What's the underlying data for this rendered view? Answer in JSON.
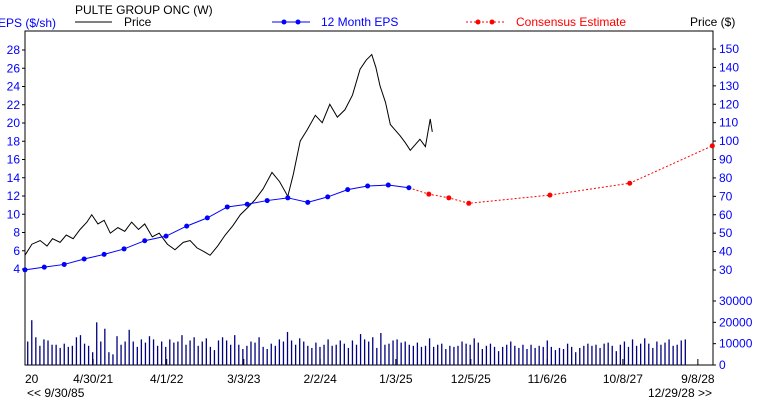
{
  "chart_data": {
    "type": "line",
    "title": "PULTE GROUP ONC (W)",
    "left_axis_label": "EPS ($/sh)",
    "right_axis_label": "Price ($)",
    "legend": {
      "price": "Price",
      "eps": "12 Month EPS",
      "estimate": "Consensus Estimate"
    },
    "colors": {
      "price": "#000000",
      "eps": "#0000ff",
      "estimate": "#ff0000",
      "volume": "#000080",
      "axis_text": "#0000ff"
    },
    "x_unit": "months from start of visible range",
    "xlim": [
      0,
      100
    ],
    "eps_ylim": [
      4,
      28
    ],
    "eps_ticks": [
      4,
      6,
      8,
      10,
      12,
      14,
      16,
      18,
      20,
      22,
      24,
      26,
      28
    ],
    "price_ylim": [
      30,
      150
    ],
    "price_ticks": [
      30,
      40,
      50,
      60,
      70,
      80,
      90,
      100,
      110,
      120,
      130,
      140,
      150
    ],
    "volume_ylim": [
      0,
      30000
    ],
    "volume_ticks": [
      0,
      10000,
      20000,
      30000
    ],
    "x_ticks": [
      {
        "label": "20",
        "x": 0
      },
      {
        "label": "4/30/21",
        "x": 9.9
      },
      {
        "label": "4/1/22",
        "x": 20.6
      },
      {
        "label": "3/3/23",
        "x": 31.8
      },
      {
        "label": "2/2/24",
        "x": 42.9
      },
      {
        "label": "1/3/25",
        "x": 53.9
      },
      {
        "label": "12/5/25",
        "x": 64.8
      },
      {
        "label": "11/6/26",
        "x": 75.9
      },
      {
        "label": "10/8/27",
        "x": 86.9
      },
      {
        "label": "9/8/28",
        "x": 97.8
      }
    ],
    "range_start": "<< 9/30/85",
    "range_end": "12/29/28 >>",
    "price": {
      "x": [
        0,
        1,
        2.2,
        3.2,
        4,
        5.1,
        6,
        7,
        8,
        9,
        9.7,
        10.6,
        11.5,
        12.4,
        13.5,
        14.5,
        15.5,
        16.5,
        17.4,
        18.5,
        19.5,
        20.7,
        21.8,
        23,
        24,
        25,
        26,
        26.9,
        28,
        29.1,
        30.2,
        31.3,
        32.4,
        33.4,
        34.6,
        35.9,
        37,
        38.2,
        39,
        40,
        41,
        42.2,
        43.2,
        44.3,
        45.4,
        46.5,
        47.6,
        48.7,
        49.6,
        50.4,
        51,
        51.6,
        52.4,
        53.1,
        53.8,
        54.5,
        55.3,
        56,
        56.7,
        57.4,
        58.2,
        58.9,
        59.2
      ],
      "values": [
        38,
        44,
        46,
        43,
        47,
        45,
        49,
        47,
        52,
        56,
        60,
        55,
        57,
        50,
        53,
        51,
        56,
        52,
        55,
        48,
        50,
        44,
        41,
        45,
        46,
        42,
        40,
        38,
        43,
        49,
        54,
        60,
        64,
        68,
        74,
        83,
        78,
        70,
        82,
        100,
        106,
        114,
        110,
        120,
        113,
        117,
        125,
        139,
        144,
        147,
        140,
        130,
        121,
        109,
        106,
        103,
        99,
        95,
        98,
        101,
        97,
        112,
        105
      ]
    },
    "eps": {
      "x": [
        0,
        2.8,
        5.7,
        8.6,
        11.5,
        14.4,
        17.4,
        20.5,
        23.5,
        26.5,
        29.4,
        32.3,
        35.2,
        38.2,
        41.1,
        44,
        46.9,
        49.8,
        52.8,
        55.8
      ],
      "values": [
        3.9,
        4.2,
        4.5,
        5.1,
        5.6,
        6.2,
        7.1,
        7.6,
        8.7,
        9.6,
        10.8,
        11.1,
        11.5,
        11.8,
        11.3,
        11.9,
        12.7,
        13.1,
        13.2,
        12.9
      ]
    },
    "estimate": {
      "x": [
        55.8,
        58.7,
        61.6,
        64.5,
        76.3,
        87.9,
        99.9
      ],
      "values": [
        12.9,
        12.2,
        11.8,
        11.2,
        12.1,
        13.4,
        17.5
      ]
    },
    "volume": {
      "x_start": 0.3,
      "x_step": 0.59,
      "values": [
        11000,
        21000,
        13000,
        9000,
        12000,
        11500,
        9500,
        9500,
        8000,
        10000,
        8500,
        9000,
        13000,
        14000,
        10000,
        9000,
        6000,
        20000,
        11000,
        17000,
        6000,
        5000,
        13500,
        9500,
        11000,
        16500,
        11000,
        8500,
        12000,
        10500,
        13500,
        12000,
        9000,
        11000,
        8500,
        12000,
        10500,
        11000,
        14000,
        9500,
        11500,
        13000,
        9000,
        11000,
        12500,
        8500,
        7000,
        11500,
        13000,
        11500,
        9500,
        14000,
        9500,
        7500,
        9000,
        11000,
        10500,
        13000,
        8500,
        7500,
        10000,
        9000,
        12000,
        11000,
        15500,
        11500,
        9500,
        12500,
        11000,
        9000,
        8000,
        10500,
        8500,
        9500,
        12000,
        9000,
        9500,
        11500,
        10000,
        8000,
        11500,
        9500,
        14500,
        12000,
        11000,
        13000,
        8000,
        15000,
        9500,
        10000,
        11500,
        12000,
        10500,
        11000,
        9500,
        9000,
        10500,
        8500,
        9000,
        12500,
        8500,
        9500,
        10000,
        7500,
        9000,
        8500,
        9000,
        11000,
        10000,
        9500,
        12500,
        10500,
        7500,
        9000,
        10000,
        8500,
        6500,
        8500,
        9500,
        11000,
        9000,
        8000,
        9500,
        7500,
        9500,
        8000,
        9000,
        8500,
        11500,
        8500,
        7000,
        8000,
        7500,
        10000,
        8500,
        6000,
        8000,
        9000,
        10000,
        9000,
        9500,
        8000,
        10000,
        10500,
        9000,
        6500,
        9500,
        11000,
        8500,
        12000,
        9000,
        10000,
        12500,
        10000,
        8000,
        11000,
        9500,
        10500,
        12000,
        9000,
        9500,
        11500,
        12000
      ]
    }
  }
}
